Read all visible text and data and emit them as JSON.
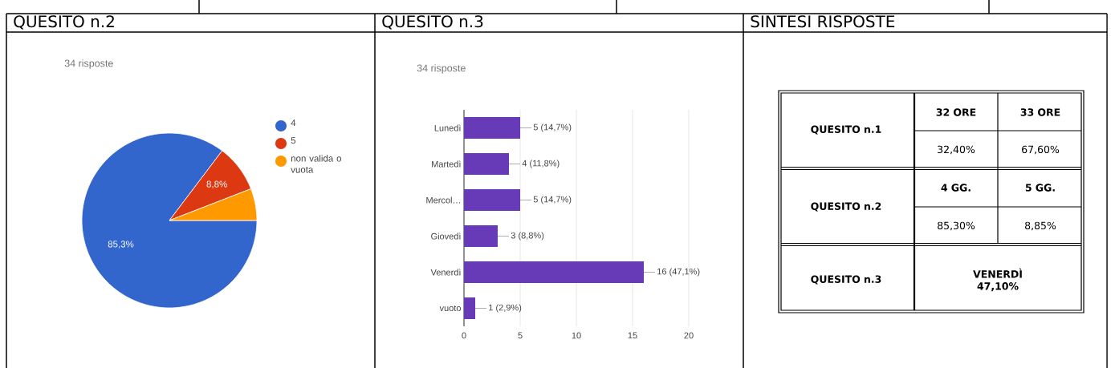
{
  "chart_data": [
    {
      "type": "pie",
      "title": "QUESITO n.2",
      "subtitle": "34 risposte",
      "categories": [
        "4",
        "5",
        "non valida o vuota"
      ],
      "values": [
        85.3,
        8.8,
        5.9
      ],
      "colors": [
        "#3366cc",
        "#dc3912",
        "#ff9900"
      ],
      "value_labels": [
        "85,3%",
        "8,8%",
        null
      ],
      "legend": "right"
    },
    {
      "type": "bar",
      "orientation": "horizontal",
      "title": "QUESITO n.3",
      "subtitle": "34 risposte",
      "categories": [
        "Lunedì",
        "Martedì",
        "Mercol…",
        "Giovedì",
        "Venerdì",
        "vuoto"
      ],
      "values": [
        5,
        4,
        5,
        3,
        16,
        1
      ],
      "color": "#673ab7",
      "value_labels": [
        "5 (14,7%)",
        "4 (11,8%)",
        "5 (14,7%)",
        "3 (8,8%)",
        "16 (47,1%)",
        "1 (2,9%)"
      ],
      "xlim": [
        0,
        20
      ],
      "xticks": [
        0,
        5,
        10,
        15,
        20
      ],
      "grid": "x"
    },
    {
      "type": "other",
      "title": "SINTESI RISPOSTE",
      "annotations": [
        "QUESITO n.1",
        "32 ORE",
        "33 ORE",
        "32,40%",
        "67,60%",
        "QUESITO n.2",
        "4 GG.",
        "5 GG.",
        "85,30%",
        "8,85%",
        "QUESITO n.3",
        "VENERDÌ 47,10%"
      ]
    }
  ]
}
